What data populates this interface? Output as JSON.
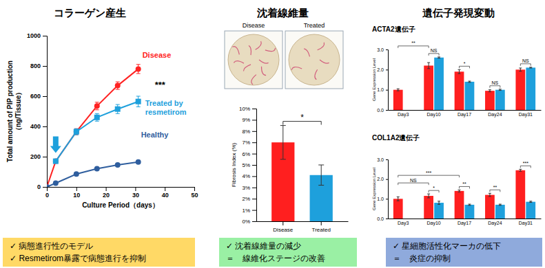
{
  "chart_data": [
    {
      "type": "line",
      "title": "コラーゲン産生",
      "x_label": "Culture Period（days）",
      "y_label": [
        "Total amount of PIP production",
        "（ng/Tissue）"
      ],
      "x": [
        0,
        3,
        10,
        17,
        24,
        31
      ],
      "series": [
        {
          "name": "Disease",
          "color": "#ff2222",
          "marker": "circle",
          "values": [
            0,
            170,
            365,
            535,
            670,
            780
          ],
          "errors": [
            0,
            10,
            20,
            25,
            25,
            30
          ]
        },
        {
          "name": "Treated by resmetirom",
          "color": "#1ea0dc",
          "marker": "square",
          "values": [
            null,
            170,
            365,
            460,
            515,
            565
          ],
          "errors": [
            null,
            10,
            20,
            25,
            30,
            35
          ]
        },
        {
          "name": "Healthy",
          "color": "#2f5e9e",
          "marker": "circle",
          "values": [
            0,
            25,
            85,
            120,
            145,
            165
          ],
          "errors": [
            0,
            5,
            5,
            5,
            5,
            5
          ]
        }
      ],
      "xlim": [
        0,
        50
      ],
      "xticks": [
        0,
        10,
        20,
        30,
        40,
        50
      ],
      "ylim": [
        0,
        1000
      ],
      "yticks": [
        0,
        200,
        400,
        600,
        800,
        1000
      ],
      "annotations": [
        {
          "text": "***"
        }
      ]
    },
    {
      "type": "bar",
      "title": "沈着線維量",
      "categories": [
        "Disease",
        "Treated"
      ],
      "values": [
        7.0,
        4.1
      ],
      "errors": [
        1.5,
        0.9
      ],
      "colors": [
        "#ff1f1f",
        "#1ea0dc"
      ],
      "y_label": "Fibrosis Index (%)",
      "ylim": [
        0,
        10
      ],
      "yticks": [
        {
          "value": 0,
          "label": "0%"
        },
        {
          "value": 1,
          "label": "1%"
        },
        {
          "value": 2,
          "label": "2%"
        },
        {
          "value": 3,
          "label": "3%"
        },
        {
          "value": 4,
          "label": "4%"
        },
        {
          "value": 5,
          "label": "5%"
        },
        {
          "value": 6,
          "label": "6%"
        },
        {
          "value": 7,
          "label": "7%"
        },
        {
          "value": 8,
          "label": "8%"
        },
        {
          "value": 9,
          "label": "9%"
        },
        {
          "value": 10,
          "label": "10%"
        }
      ],
      "annotations": [
        {
          "text": "*",
          "from": "Disease",
          "to": "Treated"
        }
      ]
    },
    {
      "type": "bar",
      "title": "ACTA2遺伝子",
      "categories": [
        "Day3",
        "Day10",
        "Day17",
        "Day24",
        "Day31"
      ],
      "series": [
        {
          "color": "#ff1f1f",
          "values": [
            1.0,
            2.2,
            1.9,
            0.95,
            2.0
          ],
          "errors": [
            0.05,
            0.15,
            0.1,
            0.05,
            0.08
          ]
        },
        {
          "color": "#1ea0dc",
          "values": [
            null,
            2.6,
            1.4,
            1.0,
            2.1
          ],
          "errors": [
            null,
            0.03,
            0.03,
            0.03,
            0.02
          ]
        }
      ],
      "y_label": "Gene Expression Level",
      "ylim": [
        0,
        3
      ],
      "yticks": [
        {
          "value": 0,
          "label": "0.0"
        },
        {
          "value": 1,
          "label": "1.0"
        },
        {
          "value": 2,
          "label": "2.0"
        },
        {
          "value": 3,
          "label": "3.0"
        }
      ],
      "annotations": [
        {
          "text": "NS",
          "from": "Day10",
          "to": "Day10"
        },
        {
          "text": "*",
          "from": "Day17",
          "to": "Day17"
        },
        {
          "text": "NS",
          "from": "Day24",
          "to": "Day24"
        },
        {
          "text": "NS",
          "from": "Day31",
          "to": "Day31"
        },
        {
          "text": "**",
          "from": "Day3",
          "to": "Day10"
        }
      ]
    },
    {
      "type": "bar",
      "title": "COL1A2遺伝子",
      "categories": [
        "Day3",
        "Day10",
        "Day17",
        "Day24",
        "Day31"
      ],
      "series": [
        {
          "color": "#ff1f1f",
          "values": [
            1.0,
            1.15,
            1.4,
            1.2,
            2.45
          ],
          "errors": [
            0.1,
            0.1,
            0.05,
            0.08,
            0.05
          ]
        },
        {
          "color": "#1ea0dc",
          "values": [
            null,
            0.8,
            0.7,
            0.7,
            0.85
          ],
          "errors": [
            null,
            0.08,
            0.03,
            0.03,
            0.03
          ]
        }
      ],
      "y_label": "Gene Expression Level",
      "ylim": [
        0,
        3
      ],
      "yticks": [
        {
          "value": 0,
          "label": "0.0"
        },
        {
          "value": 1,
          "label": "1.0"
        },
        {
          "value": 2,
          "label": "2.0"
        },
        {
          "value": 3,
          "label": "3.0"
        }
      ],
      "annotations": [
        {
          "text": "*",
          "from": "Day10",
          "to": "Day10"
        },
        {
          "text": "**",
          "from": "Day17",
          "to": "Day17"
        },
        {
          "text": "**",
          "from": "Day24",
          "to": "Day24"
        },
        {
          "text": "***",
          "from": "Day31",
          "to": "Day31"
        },
        {
          "text": "NS",
          "from": "Day3",
          "to": "Day10"
        },
        {
          "text": "***",
          "from": "Day3",
          "to": "Day17"
        }
      ]
    }
  ],
  "heading": "遺伝子発現変動",
  "images": [
    "Disease",
    "Treated"
  ],
  "summary": [
    [
      "✓ 病態進行性のモデル",
      "✓ Resmetirom暴露で病態進行を抑制"
    ],
    [
      "✓ 沈着線維量の減少",
      "＝　線維化ステージの改善"
    ],
    [
      "✓ 星細胞活性化マーカの低下",
      "＝　炎症の抑制"
    ]
  ]
}
